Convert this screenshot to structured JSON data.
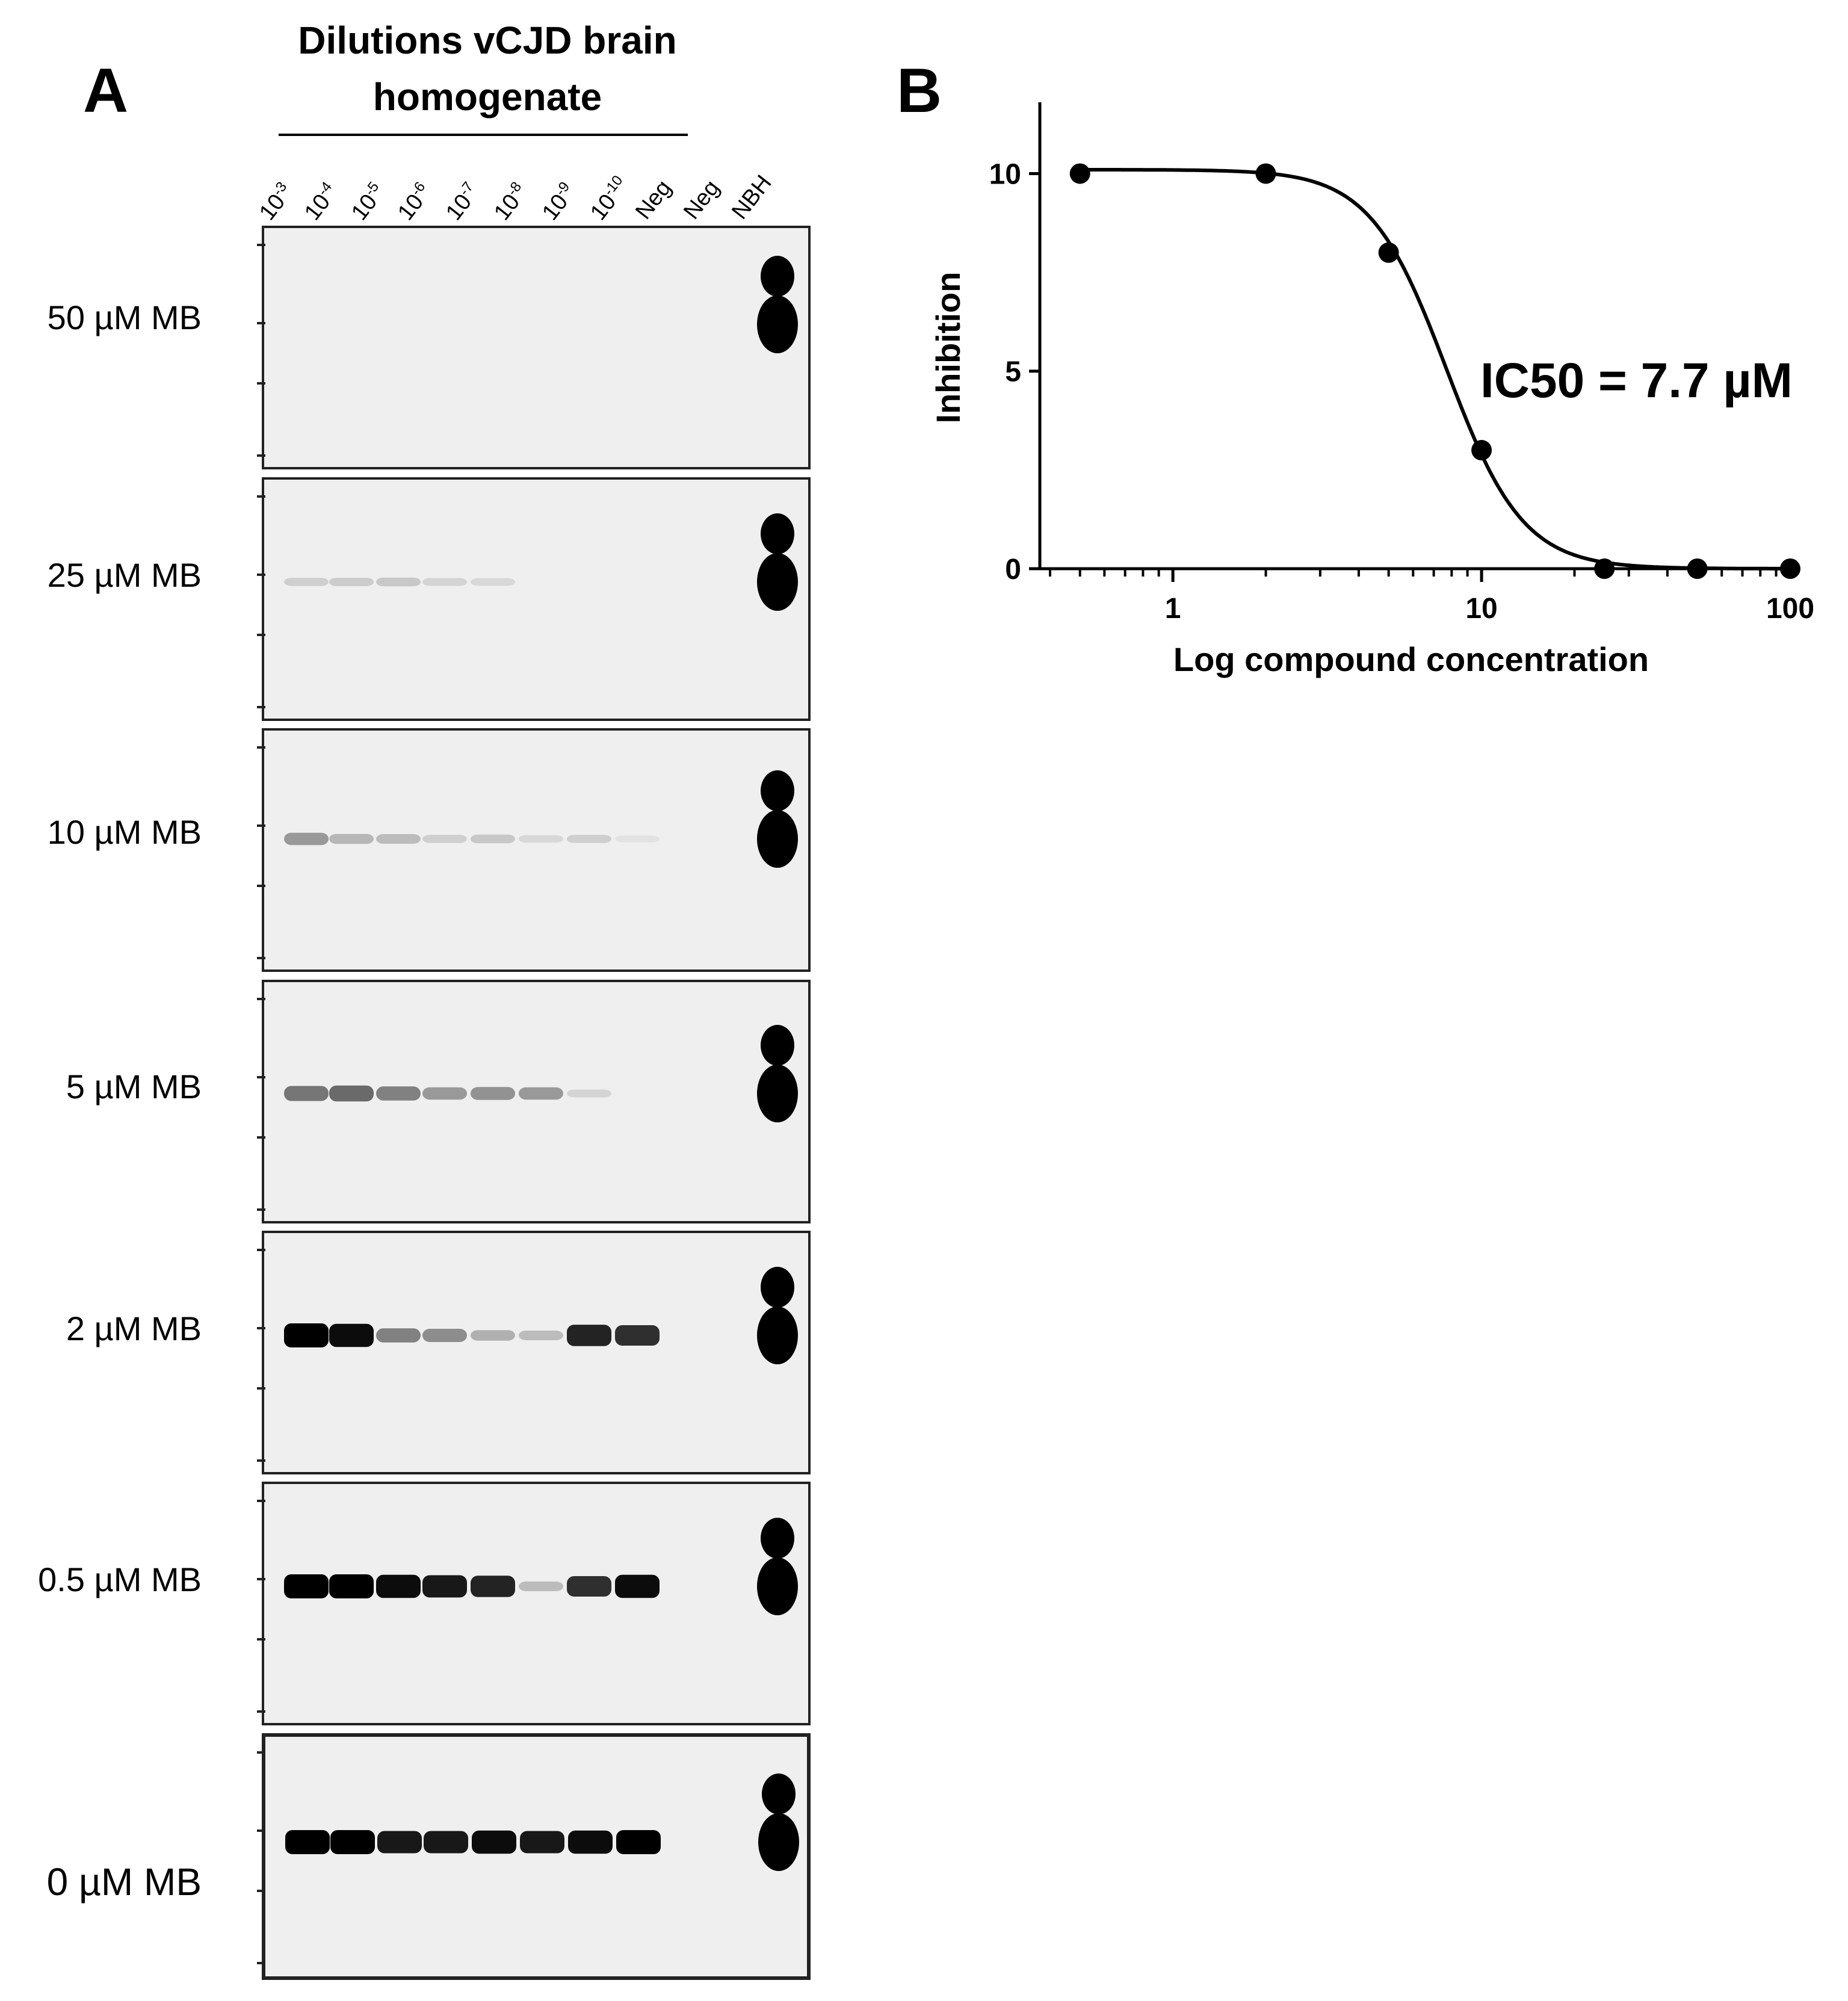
{
  "panel_a": {
    "letter": "A",
    "group_title_line1": "Dilutions vCJD brain",
    "group_title_line2": "homogenate",
    "lanes": [
      {
        "base": "10",
        "exp": "-3"
      },
      {
        "base": "10",
        "exp": "-4"
      },
      {
        "base": "10",
        "exp": "-5"
      },
      {
        "base": "10",
        "exp": "-6"
      },
      {
        "base": "10",
        "exp": "-7"
      },
      {
        "base": "10",
        "exp": "-8"
      },
      {
        "base": "10",
        "exp": "-9"
      },
      {
        "base": "10",
        "exp": "-10"
      },
      {
        "base": "Neg",
        "exp": ""
      },
      {
        "base": "Neg",
        "exp": ""
      },
      {
        "base": "NBH",
        "exp": ""
      }
    ],
    "rows": [
      {
        "label": "50 µM MB",
        "bands": [
          0,
          0,
          0,
          0,
          0,
          0,
          0,
          0,
          0,
          0,
          1
        ]
      },
      {
        "label": "25 µM MB",
        "bands": [
          0.12,
          0.13,
          0.15,
          0.1,
          0.08,
          0,
          0,
          0,
          0,
          0,
          1
        ]
      },
      {
        "label": "10 µM MB",
        "bands": [
          0.35,
          0.22,
          0.2,
          0.12,
          0.15,
          0.08,
          0.12,
          0.04,
          0,
          0,
          1
        ]
      },
      {
        "label": "5 µM MB",
        "bands": [
          0.5,
          0.55,
          0.45,
          0.35,
          0.38,
          0.35,
          0.1,
          0,
          0,
          0,
          1
        ]
      },
      {
        "label": "2 µM MB",
        "bands": [
          1,
          0.95,
          0.45,
          0.4,
          0.25,
          0.2,
          0.85,
          0.8,
          0,
          0,
          1
        ]
      },
      {
        "label": "0.5 µM MB",
        "bands": [
          1,
          1,
          0.95,
          0.9,
          0.85,
          0.2,
          0.8,
          0.95,
          0,
          0,
          1
        ]
      },
      {
        "label": "0 µM MB",
        "bands": [
          1,
          1,
          0.9,
          0.9,
          0.95,
          0.9,
          0.95,
          1,
          0,
          0,
          1
        ]
      }
    ]
  },
  "panel_b": {
    "letter": "B",
    "annotation": "IC50 = 7.7 µM",
    "colors": {
      "line": "#000000",
      "points": "#000000"
    }
  },
  "chart_data": {
    "type": "scatter",
    "title": "",
    "xlabel": "Log compound concentration",
    "ylabel": "Inhibition",
    "x_scale": "log",
    "xlim": [
      0.4,
      100
    ],
    "ylim": [
      0,
      11.5
    ],
    "x_ticks": [
      1,
      10,
      100
    ],
    "y_ticks": [
      0,
      5,
      10
    ],
    "series": [
      {
        "x": [
          0.5,
          2,
          5,
          10,
          25,
          50,
          100
        ],
        "y": [
          10,
          10,
          8,
          3,
          0,
          0,
          0
        ]
      }
    ],
    "fit": {
      "model": "sigmoidal dose-response",
      "top": 10.1,
      "bottom": 0,
      "ic50": 7.7,
      "hill": -3.5
    },
    "grid": false,
    "legend": "none"
  }
}
